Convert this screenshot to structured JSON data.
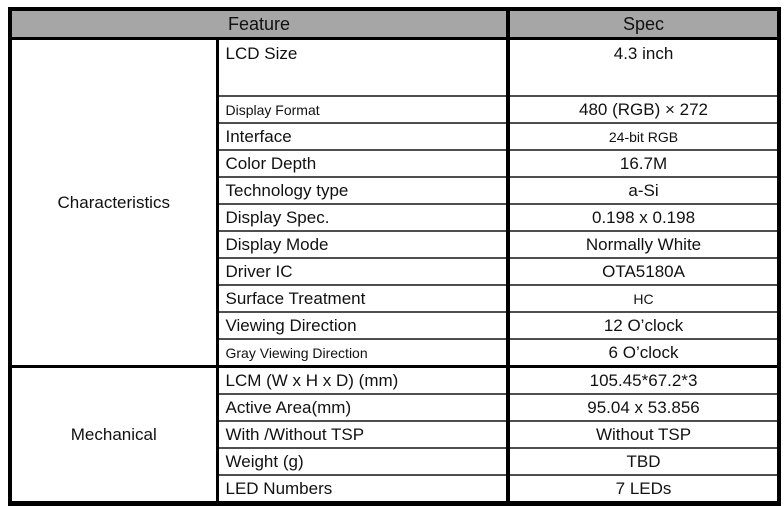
{
  "colors": {
    "header_bg": "#a6a6a6",
    "border": "#000000",
    "grid_line": "#4f4f4f",
    "text": "#111111",
    "page_bg": "#ffffff"
  },
  "header": {
    "feature_label": "Feature",
    "spec_label": "Spec"
  },
  "sections": [
    {
      "name": "Characteristics",
      "rows": [
        {
          "feature": "LCD Size",
          "spec": "4.3 inch",
          "tall": true
        },
        {
          "feature": "Display Format",
          "spec": "480 (RGB) × 272",
          "feature_small": true
        },
        {
          "feature": "Interface",
          "spec": "24-bit RGB",
          "spec_small": true
        },
        {
          "feature": "Color Depth",
          "spec": "16.7M"
        },
        {
          "feature": "Technology type",
          "spec": "a-Si"
        },
        {
          "feature": "Display Spec.",
          "spec": "0.198 x 0.198"
        },
        {
          "feature": "Display Mode",
          "spec": "Normally White"
        },
        {
          "feature": "Driver IC",
          "spec": "OTA5180A"
        },
        {
          "feature": "Surface Treatment",
          "spec": "HC",
          "spec_small": true
        },
        {
          "feature": "Viewing Direction",
          "spec": "12 O’clock"
        },
        {
          "feature": "Gray Viewing Direction",
          "spec": "6 O’clock",
          "feature_small": true
        }
      ]
    },
    {
      "name": "Mechanical",
      "rows": [
        {
          "feature": "LCM (W x H x D) (mm)",
          "spec": "105.45*67.2*3"
        },
        {
          "feature": "Active Area(mm)",
          "spec": "95.04 x 53.856"
        },
        {
          "feature": "With /Without TSP",
          "spec": "Without TSP"
        },
        {
          "feature": "Weight (g)",
          "spec": "TBD"
        },
        {
          "feature": "LED Numbers",
          "spec": "7 LEDs"
        }
      ]
    }
  ]
}
